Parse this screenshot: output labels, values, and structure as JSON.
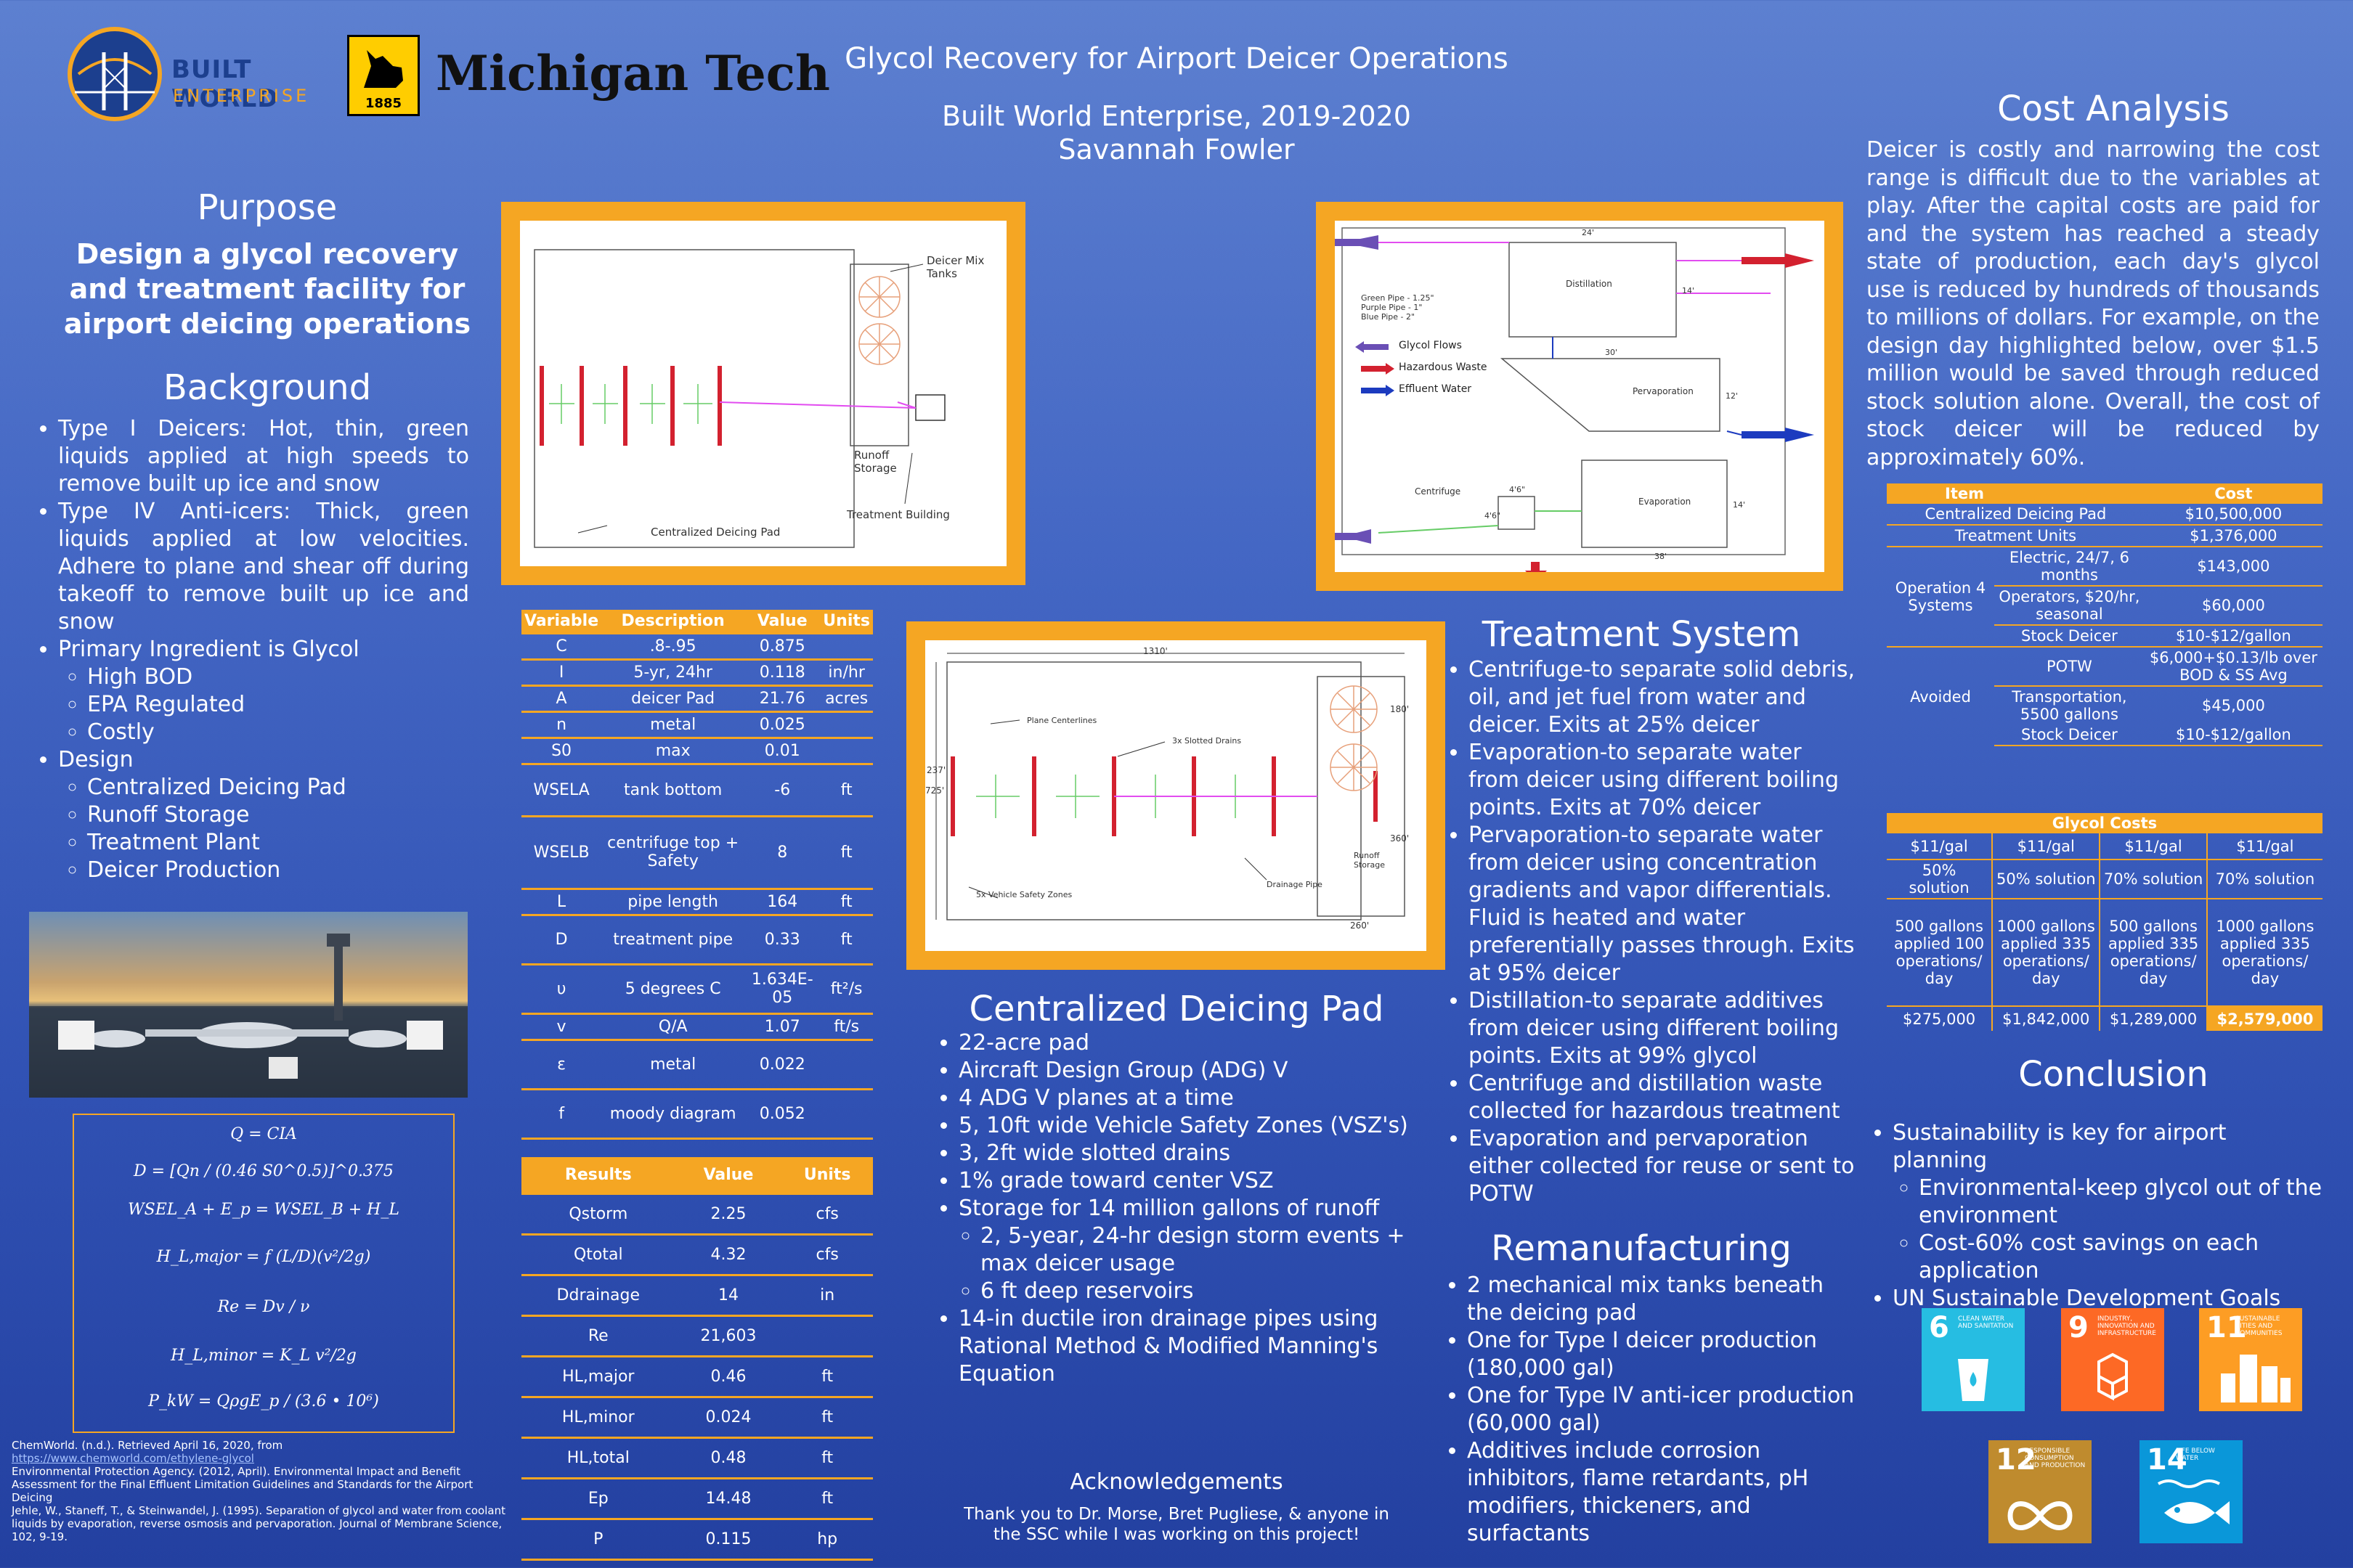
{
  "header": {
    "title": "Glycol Recovery for Airport Deicer Operations",
    "subtitle": "Built World Enterprise, 2019-2020",
    "author": "Savannah Fowler",
    "bwe_logo_line1": "BUILT WORLD",
    "bwe_logo_line2": "ENTERPRISE",
    "mtu_name": "Michigan Tech",
    "mtu_year": "1885"
  },
  "purpose": {
    "heading": "Purpose",
    "text": "Design a glycol recovery and treatment facility for airport deicing operations"
  },
  "background": {
    "heading": "Background",
    "items": [
      "Type I Deicers: Hot, thin, green liquids applied at high speeds to remove built up ice and snow",
      "Type IV Anti-icers: Thick, green liquids applied at low velocities. Adhere to plane and shear off during takeoff to remove built up ice and snow",
      "Primary Ingredient is Glycol",
      "Design"
    ],
    "glycol_sub": [
      "High BOD",
      "EPA Regulated",
      "Costly"
    ],
    "design_sub": [
      "Centralized Deicing Pad",
      "Runoff Storage",
      "Treatment Plant",
      "Deicer Production"
    ]
  },
  "equations": [
    "Q = CIA",
    "D = [Qn / (0.46 S0^0.5)]^0.375",
    "WSEL_A + E_p = WSEL_B + H_L",
    "H_L,major = f (L/D)(v²/2g)",
    "Re = Dv / ν",
    "H_L,minor = K_L v²/2g",
    "P_kW = QρgE_p / (3.6 • 10⁶)"
  ],
  "references": [
    "ChemWorld. (n.d.). Retrieved April 16, 2020, from",
    "https://www.chemworld.com/ethylene-glycol",
    "Environmental Protection Agency. (2012, April). Environmental Impact and Benefit Assessment   for the Final Effluent Limitation Guidelines and Standards for the Airport Deicing",
    "Jehle, W., Staneff, T., & Steinwandel, J. (1995). Separation of glycol and water from coolant      liquids by evaporation, reverse osmosis and pervaporation. Journal of Membrane Science, 102, 9-19."
  ],
  "diagram1": {
    "label_tanks": "Deicer Mix Tanks",
    "label_runoff": "Runoff Storage",
    "label_pad": "Centralized Deicing Pad",
    "label_building": "Treatment Building"
  },
  "diagram2": {
    "legend": [
      "Glycol Flows",
      "Hazardous Waste",
      "Effluent Water"
    ],
    "pipes": [
      "Green Pipe - 1.25\"",
      "Purple Pipe - 1\"",
      "Blue Pipe - 2\""
    ],
    "labels": [
      "Distillation",
      "Pervaporation",
      "Evaporation",
      "Centrifuge"
    ],
    "dims": [
      "24'",
      "30'",
      "14'",
      "12'",
      "14'",
      "4'6\"",
      "4'6\"",
      "38'"
    ]
  },
  "diagram3": {
    "width": "1310'",
    "height": "725'",
    "dims": [
      "237'",
      "180'",
      "360'",
      "260'"
    ],
    "labels": [
      "Plane Centerlines",
      "3x Slotted Drains",
      "5x Vehicle Safety Zones",
      "Drainage Pipe",
      "Runoff Storage"
    ]
  },
  "variable_table": {
    "headers": [
      "Variable",
      "Description",
      "Value",
      "Units"
    ],
    "rows": [
      [
        "C",
        ".8-.95",
        "0.875",
        ""
      ],
      [
        "I",
        "5-yr, 24hr",
        "0.118",
        "in/hr"
      ],
      [
        "A",
        "deicer Pad",
        "21.76",
        "acres"
      ],
      [
        "n",
        "metal",
        "0.025",
        ""
      ],
      [
        "S0",
        "max",
        "0.01",
        ""
      ],
      [
        "WSELA",
        "tank bottom",
        "-6",
        "ft"
      ],
      [
        "WSELB",
        "centrifuge top + Safety",
        "8",
        "ft"
      ],
      [
        "L",
        "pipe length",
        "164",
        "ft"
      ],
      [
        "D",
        "treatment pipe",
        "0.33",
        "ft"
      ],
      [
        "υ",
        "5 degrees C",
        "1.634E-05",
        "ft²/s"
      ],
      [
        "v",
        "Q/A",
        "1.07",
        "ft/s"
      ],
      [
        "ε",
        "metal",
        "0.022",
        ""
      ],
      [
        "f",
        "moody diagram",
        "0.052",
        ""
      ]
    ],
    "results_headers": [
      "Results",
      "Value",
      "Units"
    ],
    "results": [
      [
        "Qstorm",
        "2.25",
        "cfs"
      ],
      [
        "Qtotal",
        "4.32",
        "cfs"
      ],
      [
        "Ddrainage",
        "14",
        "in"
      ],
      [
        "Re",
        "21,603",
        ""
      ],
      [
        "HL,major",
        "0.46",
        "ft"
      ],
      [
        "HL,minor",
        "0.024",
        "ft"
      ],
      [
        "HL,total",
        "0.48",
        "ft"
      ],
      [
        "Ep",
        "14.48",
        "ft"
      ],
      [
        "P",
        "0.115",
        "hp"
      ]
    ]
  },
  "pad": {
    "heading": "Centralized Deicing Pad",
    "items": [
      "22-acre pad",
      "Aircraft Design Group (ADG) V",
      "4 ADG V planes at a time",
      "5, 10ft wide Vehicle Safety Zones (VSZ's)",
      "3, 2ft wide slotted drains",
      "1% grade toward center VSZ",
      "Storage for 14 million gallons of runoff",
      "14-in ductile iron drainage pipes using Rational Method & Modified Manning's Equation"
    ],
    "storage_sub": [
      "2, 5-year, 24-hr design storm events + max deicer usage",
      "6 ft deep reservoirs"
    ]
  },
  "acknowledgements": {
    "heading": "Acknowledgements",
    "text": "Thank you to Dr. Morse, Bret Pugliese, & anyone in the SSC while I was working on this project!"
  },
  "treatment": {
    "heading": "Treatment System",
    "items": [
      "Centrifuge-to separate solid debris, oil, and jet fuel from water and deicer. Exits at 25% deicer",
      "Evaporation-to separate water from deicer using different boiling points. Exits at 70% deicer",
      "Pervaporation-to separate water from deicer using concentration gradients and vapor differentials. Fluid is heated and water preferentially passes through. Exits at 95% deicer",
      "Distillation-to separate additives from deicer using different boiling points. Exits at 99% glycol",
      "Centrifuge and distillation waste collected for hazardous treatment",
      "Evaporation and pervaporation either collected for reuse or sent to POTW"
    ]
  },
  "remanufacturing": {
    "heading": "Remanufacturing",
    "items": [
      "2 mechanical mix tanks beneath the deicing pad",
      "One for Type I deicer production (180,000 gal)",
      "One for Type IV anti-icer production (60,000 gal)",
      "Additives include corrosion inhibitors, flame retardants, pH modifiers, thickeners, and surfactants"
    ]
  },
  "cost": {
    "heading": "Cost Analysis",
    "text": "Deicer is costly and narrowing the cost range is difficult due to the variables at play. After the capital costs are paid for and the system has reached a steady state of production, each day's glycol use is reduced by hundreds of thousands to millions of dollars. For example, on the design day highlighted below, over $1.5 million would be saved through reduced stock solution alone. Overall, the cost of stock deicer will be reduced by approximately 60%.",
    "table_headers": [
      "Item",
      "Cost"
    ],
    "centralized": [
      "Centralized Deicing Pad",
      "$10,500,000"
    ],
    "treatment_units": [
      "Treatment Units",
      "$1,376,000"
    ],
    "operation_label": "Operation 4 Systems",
    "operation_rows": [
      [
        "Electric, 24/7, 6 months",
        "$143,000"
      ],
      [
        "Operators, $20/hr, seasonal",
        "$60,000"
      ]
    ],
    "stock_deicer": [
      "Stock Deicer",
      "$10-$12/gallon"
    ],
    "avoided_label": "Avoided",
    "avoided_rows": [
      [
        "POTW",
        "$6,000+$0.13/lb over BOD & SS Avg"
      ],
      [
        "Transportation, 5500 gallons",
        "$45,000"
      ],
      [
        "Stock Deicer",
        "$10-$12/gallon"
      ]
    ]
  },
  "glycol_costs": {
    "heading": "Glycol Costs",
    "columns": [
      {
        "price": "$11/gal",
        "solution": "50% solution",
        "usage": "500 gallons applied 100 operations/ day",
        "total": "$275,000"
      },
      {
        "price": "$11/gal",
        "solution": "50% solution",
        "usage": "1000 gallons applied 335 operations/ day",
        "total": "$1,842,000"
      },
      {
        "price": "$11/gal",
        "solution": "70% solution",
        "usage": "500 gallons applied 335 operations/ day",
        "total": "$1,289,000"
      },
      {
        "price": "$11/gal",
        "solution": "70% solution",
        "usage": "1000 gallons applied 335 operations/ day",
        "total": "$2,579,000"
      }
    ]
  },
  "conclusion": {
    "heading": "Conclusion",
    "items": [
      "Sustainability is key for airport planning",
      "UN Sustainable Development Goals"
    ],
    "sub": [
      "Environmental-keep glycol out of the environment",
      "Cost-60% cost savings on each application"
    ],
    "sdgs": [
      {
        "num": "6",
        "label": "CLEAN WATER AND SANITATION",
        "color": "#26bde2"
      },
      {
        "num": "9",
        "label": "INDUSTRY, INNOVATION AND INFRASTRUCTURE",
        "color": "#fd6925"
      },
      {
        "num": "11",
        "label": "SUSTAINABLE CITIES AND COMMUNITIES",
        "color": "#fd9d24"
      },
      {
        "num": "12",
        "label": "RESPONSIBLE CONSUMPTION AND PRODUCTION",
        "color": "#bf8b2e"
      },
      {
        "num": "14",
        "label": "LIFE BELOW WATER",
        "color": "#0a97d9"
      }
    ]
  }
}
